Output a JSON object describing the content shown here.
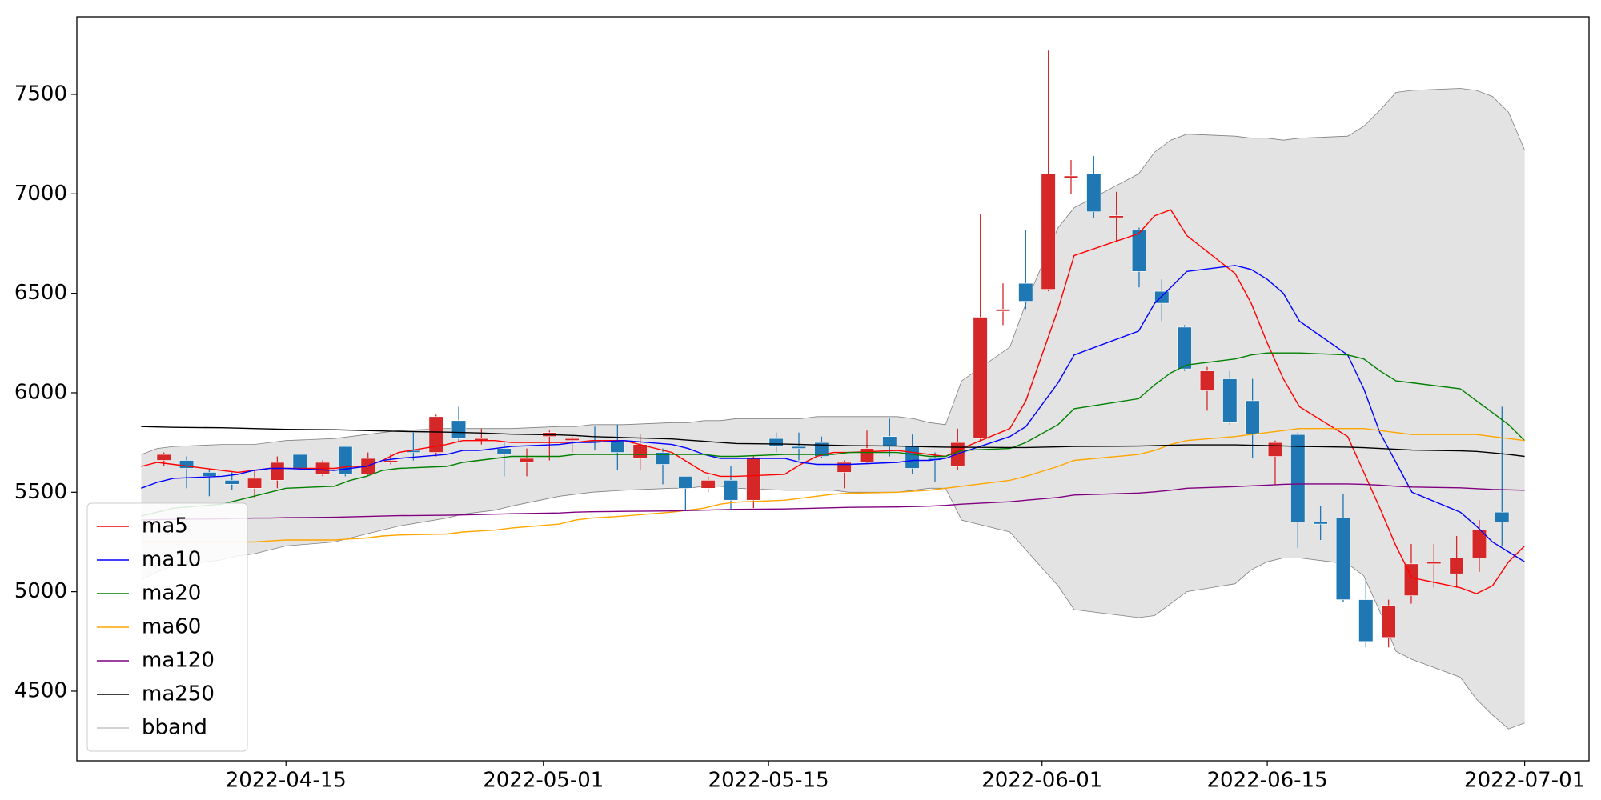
{
  "chart_data": {
    "type": "candlestick",
    "x": [
      "2022-04-06",
      "2022-04-07",
      "2022-04-08",
      "2022-04-11",
      "2022-04-12",
      "2022-04-13",
      "2022-04-14",
      "2022-04-15",
      "2022-04-18",
      "2022-04-19",
      "2022-04-20",
      "2022-04-21",
      "2022-04-22",
      "2022-04-25",
      "2022-04-26",
      "2022-04-27",
      "2022-04-28",
      "2022-04-29",
      "2022-05-02",
      "2022-05-03",
      "2022-05-04",
      "2022-05-06",
      "2022-05-09",
      "2022-05-10",
      "2022-05-11",
      "2022-05-12",
      "2022-05-13",
      "2022-05-16",
      "2022-05-17",
      "2022-05-18",
      "2022-05-19",
      "2022-05-20",
      "2022-05-23",
      "2022-05-24",
      "2022-05-25",
      "2022-05-26",
      "2022-05-27",
      "2022-05-30",
      "2022-05-31",
      "2022-06-02",
      "2022-06-03",
      "2022-06-07",
      "2022-06-08",
      "2022-06-09",
      "2022-06-10",
      "2022-06-13",
      "2022-06-14",
      "2022-06-15",
      "2022-06-16",
      "2022-06-17",
      "2022-06-20",
      "2022-06-21",
      "2022-06-22",
      "2022-06-23",
      "2022-06-24",
      "2022-06-27",
      "2022-06-28",
      "2022-06-29",
      "2022-06-30",
      "2022-07-01"
    ],
    "open": [
      5660,
      5660,
      5600,
      5560,
      5520,
      5560,
      5690,
      5590,
      5730,
      5590,
      5650,
      5710,
      5700,
      5860,
      5760,
      5720,
      5650,
      5780,
      5760,
      5760,
      5760,
      5670,
      5700,
      5580,
      5520,
      5560,
      5460,
      5770,
      5730,
      5750,
      5600,
      5650,
      5780,
      5730,
      5670,
      5630,
      5770,
      6410,
      6550,
      6520,
      7080,
      7100,
      6880,
      6820,
      6510,
      6330,
      6010,
      6070,
      5960,
      5680,
      5790,
      5350,
      5370,
      4960,
      4770,
      4980,
      5140,
      5090,
      5170,
      5400
    ],
    "high": [
      5700,
      5680,
      5620,
      5600,
      5610,
      5680,
      5690,
      5660,
      5730,
      5700,
      5690,
      5800,
      5890,
      5930,
      5820,
      5750,
      5720,
      5810,
      5780,
      5830,
      5840,
      5790,
      5720,
      5580,
      5580,
      5630,
      5680,
      5800,
      5800,
      5780,
      5660,
      5810,
      5870,
      5790,
      5700,
      5820,
      6900,
      6550,
      6820,
      7720,
      7170,
      7190,
      7010,
      6830,
      6570,
      6340,
      6130,
      6110,
      6070,
      5760,
      5800,
      5430,
      5490,
      5060,
      4960,
      5240,
      5240,
      5280,
      5360,
      5930
    ],
    "low": [
      5630,
      5520,
      5480,
      5510,
      5470,
      5520,
      5610,
      5580,
      5580,
      5580,
      5640,
      5660,
      5680,
      5750,
      5740,
      5580,
      5580,
      5660,
      5700,
      5710,
      5610,
      5610,
      5540,
      5410,
      5500,
      5410,
      5420,
      5700,
      5660,
      5670,
      5520,
      5640,
      5680,
      5590,
      5550,
      5610,
      5760,
      6340,
      6420,
      6510,
      7000,
      6880,
      6760,
      6530,
      6360,
      6110,
      5910,
      5840,
      5670,
      5540,
      5220,
      5260,
      4950,
      4720,
      4720,
      4940,
      5020,
      5020,
      5100,
      5230
    ],
    "close": [
      5690,
      5620,
      5580,
      5540,
      5570,
      5650,
      5620,
      5650,
      5590,
      5670,
      5660,
      5700,
      5880,
      5770,
      5770,
      5690,
      5670,
      5800,
      5770,
      5750,
      5700,
      5740,
      5640,
      5520,
      5560,
      5460,
      5670,
      5730,
      5720,
      5680,
      5650,
      5720,
      5730,
      5620,
      5660,
      5750,
      6380,
      6420,
      6460,
      7100,
      7090,
      6910,
      6890,
      6610,
      6450,
      6120,
      6110,
      5850,
      5790,
      5750,
      5350,
      5340,
      4960,
      4750,
      4930,
      5140,
      5150,
      5170,
      5310,
      5350
    ],
    "up_color": "#d62728",
    "down_color": "#1f77b4",
    "series": [
      {
        "name": "ma5",
        "color": "#ff0000",
        "values": [
          5630,
          5650,
          5640,
          5610,
          5600,
          5610,
          5620,
          5620,
          5620,
          5630,
          5630,
          5660,
          5700,
          5740,
          5760,
          5760,
          5760,
          5750,
          5750,
          5750,
          5760,
          5760,
          5700,
          5650,
          5600,
          5580,
          5580,
          5590,
          5640,
          5680,
          5700,
          5700,
          5710,
          5700,
          5690,
          5680,
          5720,
          5820,
          5960,
          6420,
          6690,
          6800,
          6890,
          6920,
          6790,
          6600,
          6450,
          6250,
          6070,
          5930,
          5780,
          5600,
          5420,
          5230,
          5070,
          5020,
          4990,
          5030,
          5150,
          5230
        ]
      },
      {
        "name": "ma10",
        "color": "#0000ff",
        "values": [
          5520,
          5550,
          5570,
          5580,
          5590,
          5610,
          5620,
          5620,
          5610,
          5620,
          5630,
          5660,
          5670,
          5690,
          5710,
          5710,
          5720,
          5730,
          5740,
          5750,
          5750,
          5760,
          5740,
          5720,
          5690,
          5670,
          5670,
          5670,
          5650,
          5640,
          5640,
          5640,
          5650,
          5660,
          5660,
          5670,
          5700,
          5780,
          5830,
          6050,
          6190,
          6310,
          6450,
          6530,
          6610,
          6640,
          6620,
          6570,
          6500,
          6360,
          6190,
          6020,
          5800,
          5650,
          5500,
          5400,
          5330,
          5250,
          5200,
          5150
        ]
      },
      {
        "name": "ma20",
        "color": "#008000",
        "values": [
          5380,
          5400,
          5420,
          5440,
          5460,
          5480,
          5500,
          5520,
          5530,
          5560,
          5580,
          5610,
          5620,
          5630,
          5650,
          5660,
          5670,
          5680,
          5680,
          5690,
          5690,
          5690,
          5690,
          5690,
          5690,
          5680,
          5680,
          5690,
          5690,
          5690,
          5690,
          5700,
          5700,
          5690,
          5680,
          5680,
          5710,
          5720,
          5750,
          5840,
          5920,
          5970,
          6040,
          6100,
          6140,
          6170,
          6190,
          6200,
          6200,
          6200,
          6190,
          6170,
          6110,
          6060,
          6050,
          6020,
          5960,
          5900,
          5840,
          5760
        ]
      },
      {
        "name": "ma60",
        "color": "#ffa500",
        "values": [
          5250,
          5250,
          5250,
          5250,
          5250,
          5250,
          5255,
          5260,
          5260,
          5265,
          5270,
          5280,
          5285,
          5290,
          5300,
          5305,
          5310,
          5320,
          5340,
          5360,
          5370,
          5380,
          5400,
          5410,
          5420,
          5440,
          5450,
          5460,
          5470,
          5480,
          5490,
          5495,
          5500,
          5505,
          5510,
          5520,
          5530,
          5560,
          5580,
          5630,
          5660,
          5690,
          5710,
          5740,
          5760,
          5780,
          5790,
          5800,
          5810,
          5820,
          5820,
          5820,
          5810,
          5800,
          5790,
          5790,
          5790,
          5780,
          5770,
          5760
        ]
      },
      {
        "name": "ma120",
        "color": "#800080",
        "values": [
          5360,
          5362,
          5364,
          5366,
          5368,
          5370,
          5370,
          5372,
          5374,
          5376,
          5378,
          5380,
          5382,
          5384,
          5386,
          5388,
          5390,
          5392,
          5396,
          5400,
          5402,
          5404,
          5406,
          5408,
          5410,
          5412,
          5414,
          5416,
          5418,
          5420,
          5422,
          5424,
          5426,
          5428,
          5430,
          5434,
          5440,
          5452,
          5460,
          5474,
          5486,
          5496,
          5502,
          5510,
          5520,
          5528,
          5532,
          5536,
          5540,
          5542,
          5542,
          5540,
          5536,
          5530,
          5526,
          5522,
          5518,
          5514,
          5512,
          5510
        ]
      },
      {
        "name": "ma250",
        "color": "#000000",
        "values": [
          5830,
          5828,
          5826,
          5824,
          5822,
          5820,
          5818,
          5816,
          5814,
          5812,
          5810,
          5808,
          5806,
          5802,
          5800,
          5798,
          5795,
          5792,
          5788,
          5785,
          5780,
          5775,
          5768,
          5762,
          5756,
          5750,
          5745,
          5742,
          5740,
          5738,
          5736,
          5734,
          5732,
          5730,
          5728,
          5727,
          5726,
          5725,
          5725,
          5728,
          5730,
          5732,
          5734,
          5736,
          5738,
          5738,
          5736,
          5735,
          5733,
          5730,
          5727,
          5724,
          5720,
          5716,
          5712,
          5708,
          5705,
          5698,
          5690,
          5680
        ]
      }
    ],
    "band": {
      "name": "bband",
      "color": "#808080",
      "fill": "#e3e3e3",
      "upper": [
        5690,
        5720,
        5730,
        5740,
        5740,
        5740,
        5750,
        5760,
        5770,
        5780,
        5790,
        5800,
        5810,
        5820,
        5820,
        5820,
        5820,
        5820,
        5830,
        5830,
        5840,
        5840,
        5850,
        5850,
        5860,
        5860,
        5870,
        5870,
        5870,
        5880,
        5880,
        5880,
        5880,
        5870,
        5850,
        5840,
        6060,
        6230,
        6450,
        6830,
        6930,
        7100,
        7210,
        7270,
        7300,
        7290,
        7280,
        7280,
        7270,
        7280,
        7290,
        7340,
        7420,
        7510,
        7520,
        7530,
        7520,
        7490,
        7410,
        7220
      ],
      "lower": [
        5060,
        5100,
        5130,
        5160,
        5180,
        5190,
        5210,
        5230,
        5250,
        5270,
        5290,
        5310,
        5330,
        5370,
        5390,
        5400,
        5410,
        5430,
        5480,
        5490,
        5500,
        5510,
        5520,
        5520,
        5530,
        5530,
        5520,
        5510,
        5510,
        5510,
        5510,
        5500,
        5500,
        5510,
        5520,
        5520,
        5360,
        5300,
        5210,
        5030,
        4910,
        4870,
        4880,
        4940,
        5000,
        5040,
        5110,
        5150,
        5170,
        5170,
        5140,
        5080,
        4900,
        4700,
        4660,
        4570,
        4460,
        4380,
        4310,
        4340
      ]
    },
    "xlim": [
      "2022-04-02",
      "2022-07-05"
    ],
    "xticks": [
      "2022-04-15",
      "2022-05-01",
      "2022-05-15",
      "2022-06-01",
      "2022-06-15",
      "2022-07-01"
    ],
    "ylim": [
      4150,
      7890
    ],
    "yticks": [
      4500,
      5000,
      5500,
      6000,
      6500,
      7000,
      7500
    ],
    "legend": "lower left"
  }
}
